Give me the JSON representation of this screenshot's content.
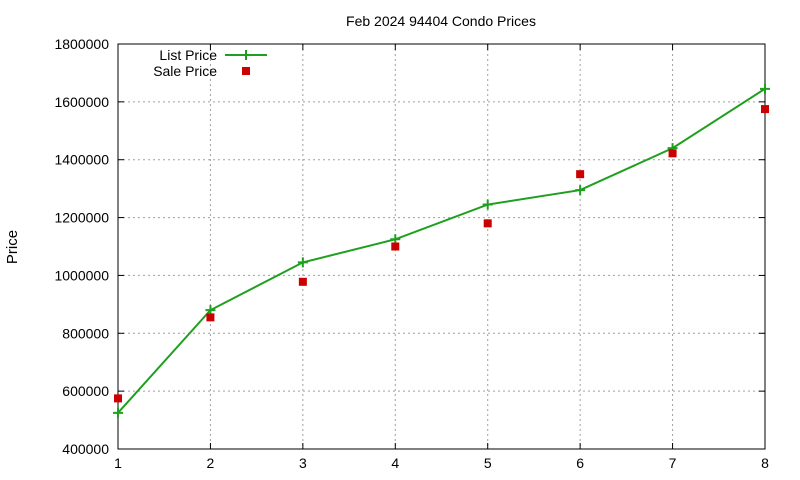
{
  "chart_data": {
    "type": "line",
    "title": "Feb 2024 94404 Condo Prices",
    "xlabel": "",
    "ylabel": "Price",
    "x": [
      1,
      2,
      3,
      4,
      5,
      6,
      7,
      8
    ],
    "xlim": [
      1,
      8
    ],
    "ylim": [
      400000,
      1800000
    ],
    "x_ticks": [
      "1",
      "2",
      "3",
      "4",
      "5",
      "6",
      "7",
      "8"
    ],
    "y_ticks": [
      "400000",
      "600000",
      "800000",
      "1000000",
      "1200000",
      "1400000",
      "1600000",
      "1800000"
    ],
    "grid": true,
    "legend_position": "top-left",
    "series": [
      {
        "name": "List Price",
        "style": "line-with-plus-markers",
        "color": "#1ea01e",
        "values": [
          525000,
          880000,
          1045000,
          1125000,
          1245000,
          1295000,
          1440000,
          1645000
        ]
      },
      {
        "name": "Sale Price",
        "style": "square-markers",
        "color": "#cc0000",
        "values": [
          575000,
          855000,
          978000,
          1100000,
          1180000,
          1350000,
          1422000,
          1575000
        ]
      }
    ]
  }
}
